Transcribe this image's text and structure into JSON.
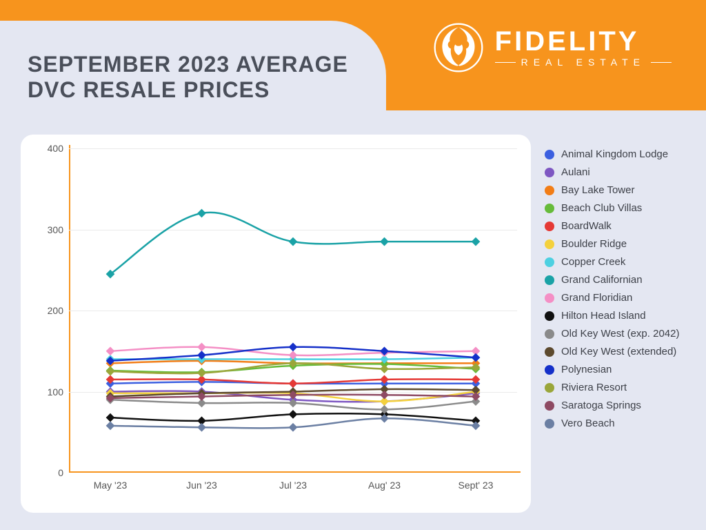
{
  "page": {
    "background_color": "#e4e7f2",
    "banner_color": "#f7941d",
    "title": "SEPTEMBER 2023 AVERAGE DVC RESALE PRICES",
    "title_color": "#4a4f5a",
    "title_fontsize": 32
  },
  "logo": {
    "brand": "FIDELITY",
    "subline": "REAL ESTATE",
    "color": "#ffffff"
  },
  "chart": {
    "type": "line",
    "background_color": "#ffffff",
    "axis_color": "#f7941d",
    "grid_color": "#eaeaea",
    "tick_fontsize": 14,
    "tick_color": "#555555",
    "ylim": [
      0,
      400
    ],
    "yticks": [
      0,
      100,
      200,
      300,
      400
    ],
    "categories": [
      "May '23",
      "Jun '23",
      "Jul '23",
      "Aug' 23",
      "Sept' 23"
    ],
    "line_width": 2.5,
    "marker": "diamond",
    "marker_size": 9,
    "legend_fontsize": 15,
    "legend_text_color": "#3d4048",
    "series": [
      {
        "name": "Animal Kingdom Lodge",
        "color": "#3b5fe0",
        "values": [
          110,
          112,
          110,
          110,
          110
        ]
      },
      {
        "name": "Aulani",
        "color": "#7e57c2",
        "values": [
          100,
          100,
          90,
          88,
          98
        ]
      },
      {
        "name": "Bay Lake Tower",
        "color": "#f27d16",
        "values": [
          135,
          138,
          135,
          135,
          135
        ]
      },
      {
        "name": "Beach Club Villas",
        "color": "#66bb3a",
        "values": [
          126,
          124,
          132,
          134,
          128
        ]
      },
      {
        "name": "BoardWalk",
        "color": "#e53935",
        "values": [
          115,
          115,
          110,
          115,
          115
        ]
      },
      {
        "name": "Boulder Ridge",
        "color": "#f4d13d",
        "values": [
          98,
          98,
          98,
          88,
          100
        ]
      },
      {
        "name": "Copper Creek",
        "color": "#4dd0e1",
        "values": [
          140,
          140,
          140,
          140,
          142
        ]
      },
      {
        "name": "Grand Californian",
        "color": "#1aa2a6",
        "values": [
          245,
          320,
          285,
          285,
          285
        ]
      },
      {
        "name": "Grand Floridian",
        "color": "#f48fc5",
        "values": [
          150,
          155,
          145,
          148,
          150
        ]
      },
      {
        "name": "Hilton Head Island",
        "color": "#111111",
        "values": [
          68,
          64,
          72,
          72,
          64
        ]
      },
      {
        "name": "Old Key West (exp. 2042)",
        "color": "#8a8a8a",
        "values": [
          90,
          86,
          86,
          78,
          88
        ]
      },
      {
        "name": "Old Key West (extended)",
        "color": "#5d4a2e",
        "values": [
          94,
          98,
          100,
          103,
          102
        ]
      },
      {
        "name": "Polynesian",
        "color": "#1530c9",
        "values": [
          138,
          145,
          155,
          150,
          142
        ]
      },
      {
        "name": "Riviera Resort",
        "color": "#9aa63a",
        "values": [
          125,
          123,
          135,
          128,
          130
        ]
      },
      {
        "name": "Saratoga Springs",
        "color": "#8e4a63",
        "values": [
          92,
          94,
          96,
          96,
          94
        ]
      },
      {
        "name": "Vero Beach",
        "color": "#6b7fa3",
        "values": [
          58,
          56,
          56,
          67,
          58
        ]
      }
    ]
  }
}
